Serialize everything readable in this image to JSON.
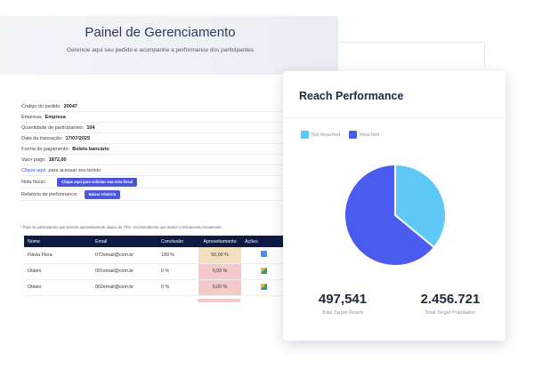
{
  "header": {
    "title": "Painel de Gerenciamento",
    "subtitle": "Gerencie aqui seu pedido e acompanhe a performance dos participantes"
  },
  "order": {
    "code_label": "Código do pedido:",
    "code_value": "20047",
    "company_label": "Empresa:",
    "company_value": "Empresa",
    "participants_label": "Quantidade de participantes:",
    "participants_value": "104",
    "date_label": "Data da transação:",
    "date_value": "17/07/2025",
    "payment_label": "Forma de pagamento:",
    "payment_value": "Boleto bancário",
    "amount_label": "Valor pago:",
    "amount_value": "1872,00",
    "boleto_link": "Clique aqui",
    "boleto_text": "para acessar seu boleto",
    "invoice_label": "Nota fiscal:",
    "invoice_button": "Clique aqui para solicitar sua nota fiscal",
    "report_label": "Relatório de performance:",
    "report_button": "Baixar relatório"
  },
  "note": "* Para os participantes que tiveram aproveitamento abaixo de 70%, recomendamos que realize o treinamento novamente.",
  "table": {
    "headers": [
      "Nome",
      "Email",
      "Conclusão",
      "Aproveitamento",
      "Ações"
    ],
    "rows": [
      {
        "name": "Flávia Flora",
        "email": "072email@com.br",
        "conclusao": "100 %",
        "aproveitamento": "50,00 %",
        "action_icon": "document-icon"
      },
      {
        "name": "Otávio",
        "email": "001email@com.br",
        "conclusao": "0 %",
        "aproveitamento": "0,00 %",
        "action_icon": "image-icon"
      },
      {
        "name": "Otávio",
        "email": "002email@com.br",
        "conclusao": "0 %",
        "aproveitamento": "0,00 %",
        "action_icon": "image-icon"
      }
    ]
  },
  "reach": {
    "title": "Reach Performance",
    "stats": [
      {
        "value": "497,541",
        "label": "Total Target Reach"
      },
      {
        "value": "2.456.721",
        "label": "Total Target Population"
      }
    ]
  },
  "chart_data": {
    "type": "pie",
    "title": "Reach Performance",
    "categories": [
      "Not Reached",
      "Reached"
    ],
    "values": [
      36,
      64
    ],
    "colors": [
      "#5ec8f8",
      "#4a5bf0"
    ],
    "legend": "top-left"
  }
}
